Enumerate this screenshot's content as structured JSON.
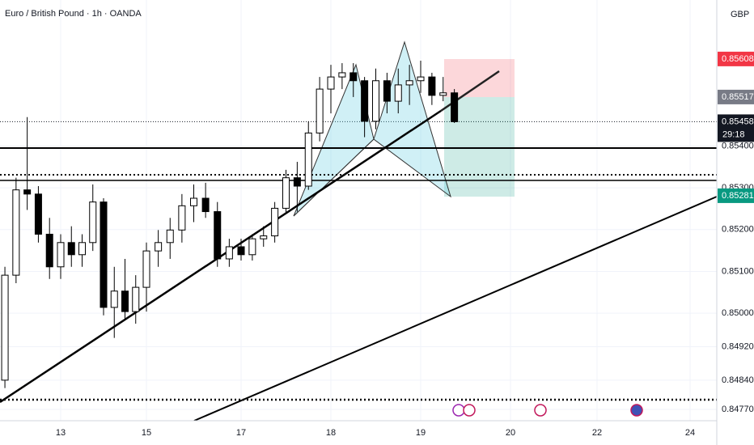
{
  "chart_data": {
    "type": "candlestick",
    "title": "Euro / British Pound · 1h · OANDA",
    "currency": "GBP",
    "countdown": "29:18",
    "up_color": "#ffffff",
    "down_color": "#000000",
    "wick_color": "#000000",
    "grid": true,
    "xlim": [
      12.32,
      24.57
    ],
    "xticks": [
      13,
      15,
      17,
      18,
      19,
      20,
      22,
      24
    ],
    "ylim": [
      0.84743,
      0.85749
    ],
    "yticks": [
      {
        "value": 0.854,
        "label": "0.85400"
      },
      {
        "value": 0.853,
        "label": "0.85300"
      },
      {
        "value": 0.852,
        "label": "0.85200"
      },
      {
        "value": 0.851,
        "label": "0.85100"
      },
      {
        "value": 0.85,
        "label": "0.85000"
      },
      {
        "value": 0.8492,
        "label": "0.84920"
      },
      {
        "value": 0.8484,
        "label": "0.84840"
      },
      {
        "value": 0.8477,
        "label": "0.84770"
      }
    ],
    "x": [
      12.375,
      12.5,
      12.625,
      12.75,
      12.875,
      13,
      13.25,
      13.5,
      13.75,
      14,
      14.25,
      14.5,
      14.75,
      15,
      15.25,
      15.5,
      15.75,
      16,
      16.25,
      16.5,
      16.75,
      17,
      17.125,
      17.25,
      17.375,
      17.5,
      17.625,
      17.75,
      17.875,
      18,
      18.125,
      18.25,
      18.375,
      18.5,
      18.625,
      18.75,
      18.875,
      19,
      19.125,
      19.25,
      19.375
    ],
    "open": [
      0.8484,
      0.85091,
      0.85295,
      0.85285,
      0.85189,
      0.85111,
      0.85169,
      0.8514,
      0.85169,
      0.85266,
      0.85014,
      0.85053,
      0.85004,
      0.85062,
      0.85149,
      0.85169,
      0.85199,
      0.85257,
      0.85275,
      0.85243,
      0.8513,
      0.85159,
      0.8514,
      0.85178,
      0.85185,
      0.85251,
      0.85324,
      0.85304,
      0.85431,
      0.85536,
      0.85565,
      0.85575,
      0.85556,
      0.85459,
      0.85556,
      0.85507,
      0.85546,
      0.85556,
      0.85565,
      0.85521,
      0.85527
    ],
    "high": [
      0.85111,
      0.85324,
      0.85469,
      0.85304,
      0.85228,
      0.85189,
      0.85208,
      0.85189,
      0.85308,
      0.85275,
      0.85111,
      0.8513,
      0.85091,
      0.85169,
      0.85199,
      0.85228,
      0.85285,
      0.85308,
      0.85312,
      0.85266,
      0.85178,
      0.85178,
      0.85189,
      0.85208,
      0.85266,
      0.85343,
      0.85362,
      0.85459,
      0.85565,
      0.85594,
      0.85598,
      0.85598,
      0.85565,
      0.85585,
      0.85575,
      0.85585,
      0.85594,
      0.85604,
      0.85575,
      0.85565,
      0.85536
    ],
    "low": [
      0.84821,
      0.85072,
      0.85247,
      0.85169,
      0.85082,
      0.85082,
      0.85111,
      0.85111,
      0.85149,
      0.84995,
      0.84941,
      0.84985,
      0.84975,
      0.85004,
      0.85111,
      0.8513,
      0.85169,
      0.85218,
      0.85228,
      0.85111,
      0.85111,
      0.85126,
      0.85126,
      0.85159,
      0.85169,
      0.85237,
      0.85243,
      0.85295,
      0.85411,
      0.85478,
      0.85536,
      0.85517,
      0.85421,
      0.8544,
      0.85478,
      0.85478,
      0.85498,
      0.85527,
      0.85498,
      0.85507,
      0.85455
    ],
    "close": [
      0.85091,
      0.85295,
      0.85285,
      0.85189,
      0.85111,
      0.85169,
      0.8514,
      0.85169,
      0.85266,
      0.85014,
      0.85053,
      0.85004,
      0.85062,
      0.85149,
      0.85169,
      0.85199,
      0.85257,
      0.85275,
      0.85243,
      0.8513,
      0.85159,
      0.8514,
      0.85178,
      0.85185,
      0.85251,
      0.85324,
      0.85304,
      0.85431,
      0.85536,
      0.85565,
      0.85575,
      0.85556,
      0.85459,
      0.85556,
      0.85507,
      0.85546,
      0.85556,
      0.85565,
      0.85521,
      0.85527,
      0.85458
    ],
    "markers": [
      {
        "value": 0.85608,
        "color": "#f23645"
      },
      {
        "value": 0.85517,
        "color": "#787b86"
      },
      {
        "value": 0.85458,
        "color": "#131722"
      },
      {
        "value": 0.85281,
        "color": "#089981"
      }
    ]
  }
}
